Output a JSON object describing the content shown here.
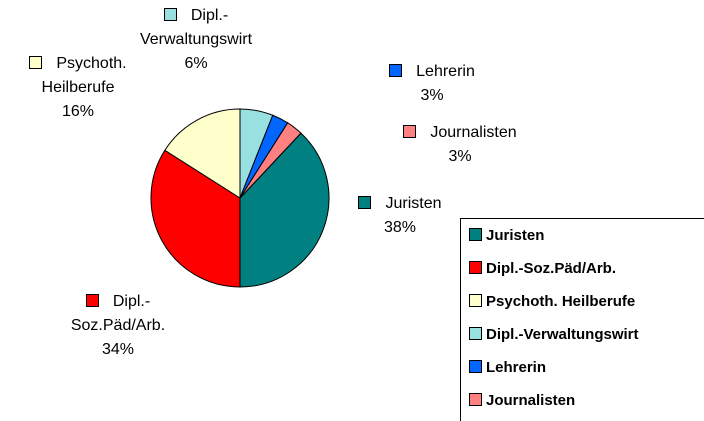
{
  "chart_data": {
    "type": "pie",
    "categories": [
      "Juristen",
      "Dipl.-Soz.Päd/Arb.",
      "Psychoth. Heilberufe",
      "Dipl.-Verwaltungswirt",
      "Lehrerin",
      "Journalisten"
    ],
    "values": [
      38,
      34,
      16,
      6,
      3,
      3
    ],
    "value_labels": [
      "38%",
      "34%",
      "16%",
      "6%",
      "3%",
      "3%"
    ],
    "colors": [
      "#008080",
      "#ff0000",
      "#ffffcc",
      "#99e0e0",
      "#0066ff",
      "#ff8080"
    ],
    "startangle": 43.2,
    "legend": "lower right"
  }
}
